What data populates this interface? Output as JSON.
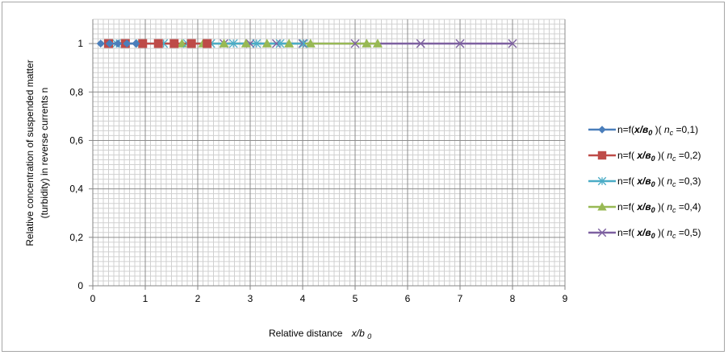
{
  "chart_data": {
    "type": "line",
    "xlabel": {
      "prefix": "Relative distance",
      "var": "x/b",
      "sub": "0"
    },
    "ylabel": {
      "line1": "Relative concentration of suspended matter",
      "line2": "(turbidity) in reverse currents n"
    },
    "xlim": [
      0,
      9
    ],
    "ylim": [
      0,
      1.1
    ],
    "x_ticks": [
      0,
      1,
      2,
      3,
      4,
      5,
      6,
      7,
      8,
      9
    ],
    "y_ticks": [
      {
        "value": 0,
        "label": "0"
      },
      {
        "value": 0.2,
        "label": "0,2"
      },
      {
        "value": 0.4,
        "label": "0,4"
      },
      {
        "value": 0.6,
        "label": "0,6"
      },
      {
        "value": 0.8,
        "label": "0,8"
      },
      {
        "value": 1,
        "label": "1"
      }
    ],
    "grid": true,
    "legend_position": "right",
    "series": [
      {
        "name": {
          "pre": "n=f(",
          "var": "x/в",
          "sub": "0",
          "mid": " )(  ",
          "nvar": "n",
          "nsub": "c",
          "post": " =0,1)"
        },
        "color": "#4a7ebb",
        "marker": "diamond",
        "x": [
          0.15,
          0.32,
          0.48,
          0.65,
          0.82
        ],
        "y": [
          1,
          1,
          1,
          1,
          1
        ]
      },
      {
        "name": {
          "pre": "n=f( ",
          "var": "x/в",
          "sub": "0",
          "mid": " )(  ",
          "nvar": "n",
          "nsub": "c",
          "post": " =0,2)"
        },
        "color": "#be4b48",
        "marker": "square",
        "x": [
          0.3,
          0.62,
          0.95,
          1.25,
          1.55,
          1.88,
          2.18
        ],
        "y": [
          1,
          1,
          1,
          1,
          1,
          1,
          1
        ]
      },
      {
        "name": {
          "pre": "n=f( ",
          "var": "x/в",
          "sub": "0",
          "mid": " )(  ",
          "nvar": "n",
          "nsub": "c",
          "post": " =0,3)"
        },
        "color": "#4bacc6",
        "marker": "asterisk",
        "x": [
          0.45,
          0.9,
          1.35,
          1.8,
          2.25,
          2.68,
          3.12,
          3.57,
          4.02
        ],
        "y": [
          1,
          1,
          1,
          1,
          1,
          1,
          1,
          1,
          1
        ]
      },
      {
        "name": {
          "pre": "n=f( ",
          "var": "x/в",
          "sub": "0",
          "mid": " )(  ",
          "nvar": "n",
          "nsub": "c",
          "post": " =0,4)"
        },
        "color": "#98b954",
        "marker": "triangle",
        "x": [
          1.7,
          2.1,
          2.5,
          2.92,
          3.32,
          3.74,
          4.15,
          5.22,
          5.43
        ],
        "y": [
          1,
          1,
          1,
          1,
          1,
          1,
          1,
          1,
          1
        ]
      },
      {
        "name": {
          "pre": "n=f( ",
          "var": "x/в",
          "sub": "0",
          "mid": " )(  ",
          "nvar": "n",
          "nsub": "c",
          "post": " =0,5)"
        },
        "color": "#7d60a0",
        "marker": "x",
        "x": [
          2.5,
          3.0,
          3.5,
          4.0,
          5.0,
          6.25,
          7.0,
          8.0
        ],
        "y": [
          1,
          1,
          1,
          1,
          1,
          1,
          1,
          1
        ]
      }
    ]
  }
}
